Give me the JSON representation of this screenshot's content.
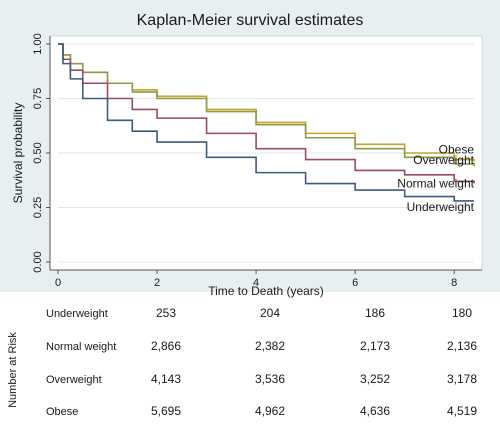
{
  "chart_data": {
    "type": "line",
    "title": "Kaplan-Meier survival estimates",
    "xlabel": "Time to Death (years)",
    "ylabel": "Survival probability",
    "xlim": [
      0,
      8.4
    ],
    "ylim": [
      0,
      1
    ],
    "xticks": [
      "0",
      "2",
      "4",
      "6",
      "8"
    ],
    "yticks": [
      "0.00",
      "0.25",
      "0.50",
      "0.75",
      "1.00"
    ],
    "grid": true,
    "series": [
      {
        "name": "Obese",
        "color": "#c9a227",
        "x": [
          0,
          0.1,
          0.25,
          0.5,
          1,
          1.5,
          2,
          3,
          4,
          5,
          6,
          7,
          8,
          8.4
        ],
        "y": [
          1,
          0.95,
          0.91,
          0.87,
          0.82,
          0.79,
          0.76,
          0.7,
          0.64,
          0.59,
          0.54,
          0.5,
          0.47,
          0.46
        ]
      },
      {
        "name": "Overweight",
        "color": "#8c9c4a",
        "x": [
          0,
          0.1,
          0.25,
          0.5,
          1,
          1.5,
          2,
          3,
          4,
          5,
          6,
          7,
          8,
          8.4
        ],
        "y": [
          1,
          0.95,
          0.91,
          0.87,
          0.82,
          0.78,
          0.75,
          0.69,
          0.63,
          0.57,
          0.52,
          0.48,
          0.45,
          0.44
        ]
      },
      {
        "name": "Normal weight",
        "color": "#9c4a63",
        "x": [
          0,
          0.1,
          0.25,
          0.5,
          1,
          1.5,
          2,
          3,
          4,
          5,
          6,
          7,
          8,
          8.4
        ],
        "y": [
          1,
          0.93,
          0.88,
          0.82,
          0.75,
          0.7,
          0.66,
          0.59,
          0.52,
          0.47,
          0.42,
          0.4,
          0.37,
          0.36
        ]
      },
      {
        "name": "Underweight",
        "color": "#3d5a80",
        "x": [
          0,
          0.1,
          0.25,
          0.5,
          1,
          1.5,
          2,
          3,
          4,
          5,
          6,
          7,
          8,
          8.4
        ],
        "y": [
          1,
          0.91,
          0.84,
          0.75,
          0.65,
          0.6,
          0.55,
          0.48,
          0.41,
          0.36,
          0.33,
          0.3,
          0.28,
          0.28
        ]
      }
    ],
    "risk_table": {
      "label": "Number at Risk",
      "rows": [
        {
          "group": "Underweight",
          "values": [
            "253",
            "204",
            "186",
            "180"
          ]
        },
        {
          "group": "Normal weight",
          "values": [
            "2,866",
            "2,382",
            "2,173",
            "2,136"
          ]
        },
        {
          "group": "Overweight",
          "values": [
            "4,143",
            "3,536",
            "3,252",
            "3,178"
          ]
        },
        {
          "group": "Obese",
          "values": [
            "5,695",
            "4,962",
            "4,636",
            "4,519"
          ]
        }
      ]
    }
  }
}
